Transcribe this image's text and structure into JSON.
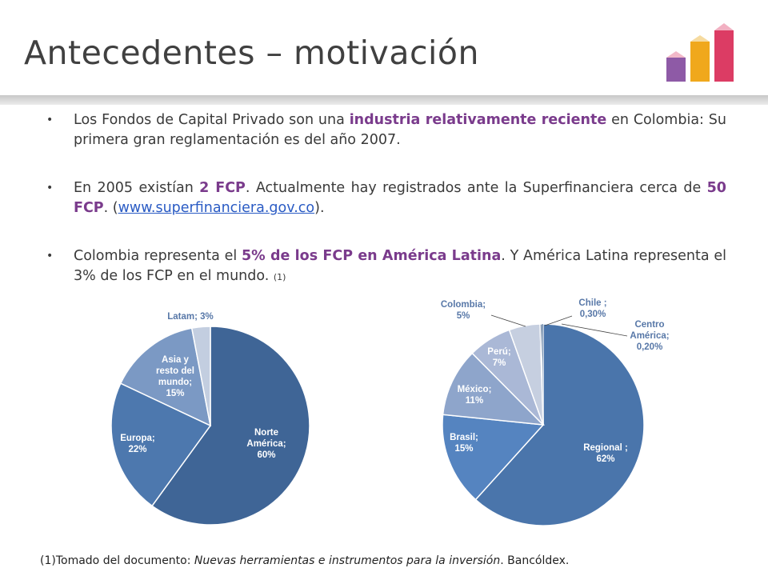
{
  "slide": {
    "title": "Antecedentes – motivación",
    "bullets": [
      {
        "pre": "Los Fondos de Capital Privado son una ",
        "em": "industria relativamente reciente",
        "post": " en Colombia: Su primera gran reglamentación es del año 2007."
      },
      {
        "pre": "En 2005 existían ",
        "em1": "2 FCP",
        "mid": ". Actualmente hay registrados ante la Superfinanciera cerca de ",
        "em2": "50 FCP",
        "mid2": ". (",
        "link": "www.superfinanciera.gov.co",
        "post": ")."
      },
      {
        "pre": "Colombia representa el ",
        "em": "5% de los FCP en América Latina",
        "post": ". Y América Latina representa el 3% de los FCP en el mundo. ",
        "ref": "(1)"
      }
    ],
    "footer": {
      "pre": "(1)Tomado del documento: ",
      "italic": "Nuevas herramientas e instrumentos para la inversión",
      "post": ". Bancóldex."
    }
  },
  "colors": {
    "accent_purple": "#7a3b8c",
    "link_blue": "#2a5bc4",
    "logo_purple": "#8e5aa6",
    "logo_orange": "#f0a81c",
    "logo_pink": "#dc3c64"
  },
  "chart_data": [
    {
      "type": "pie",
      "slices": [
        {
          "label": "Norte América;",
          "value": 60,
          "value_text": "60%",
          "color": "#3f6596"
        },
        {
          "label": "Europa;",
          "value": 22,
          "value_text": "22%",
          "color": "#4d78ae"
        },
        {
          "label": "Asia y resto del mundo;",
          "value": 15,
          "value_text": "15%",
          "color": "#7b99c4"
        },
        {
          "label": "Latam;",
          "value": 3,
          "value_text": "3%",
          "color": "#c3cee0"
        }
      ]
    },
    {
      "type": "pie",
      "slices": [
        {
          "label": "Regional ;",
          "value": 62,
          "value_text": "62%",
          "color": "#4a75ab"
        },
        {
          "label": "Brasil;",
          "value": 15,
          "value_text": "15%",
          "color": "#5584c0"
        },
        {
          "label": "México;",
          "value": 11,
          "value_text": "11%",
          "color": "#8ea5cb"
        },
        {
          "label": "Perú;",
          "value": 7,
          "value_text": "7%",
          "color": "#aab8d6"
        },
        {
          "label": "Colombia;",
          "value": 5,
          "value_text": "5%",
          "color": "#c6cfe0"
        },
        {
          "label": "Chile ;",
          "value": 0.3,
          "value_text": "0,30%",
          "color": "#2d4f7a"
        },
        {
          "label": "Centro América;",
          "value": 0.2,
          "value_text": "0,20%",
          "color": "#3b628f"
        }
      ]
    }
  ]
}
